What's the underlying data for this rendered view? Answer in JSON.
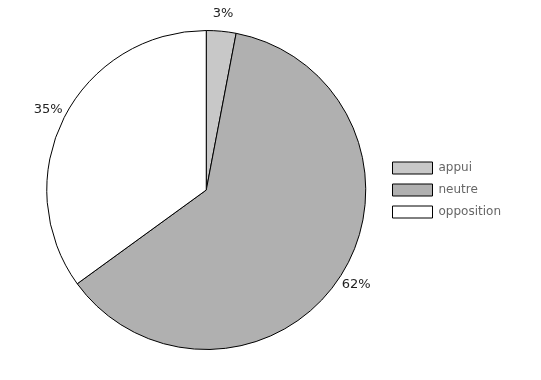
{
  "chart_data": {
    "type": "pie",
    "categories": [
      "appui",
      "neutre",
      "opposition"
    ],
    "values": [
      3,
      62,
      35
    ],
    "value_labels": [
      "3%",
      "62%",
      "35%"
    ],
    "data_labels": true,
    "colors": [
      "#c8c8c8",
      "#b0b0b0",
      "#ffffff"
    ],
    "legend": "right"
  }
}
